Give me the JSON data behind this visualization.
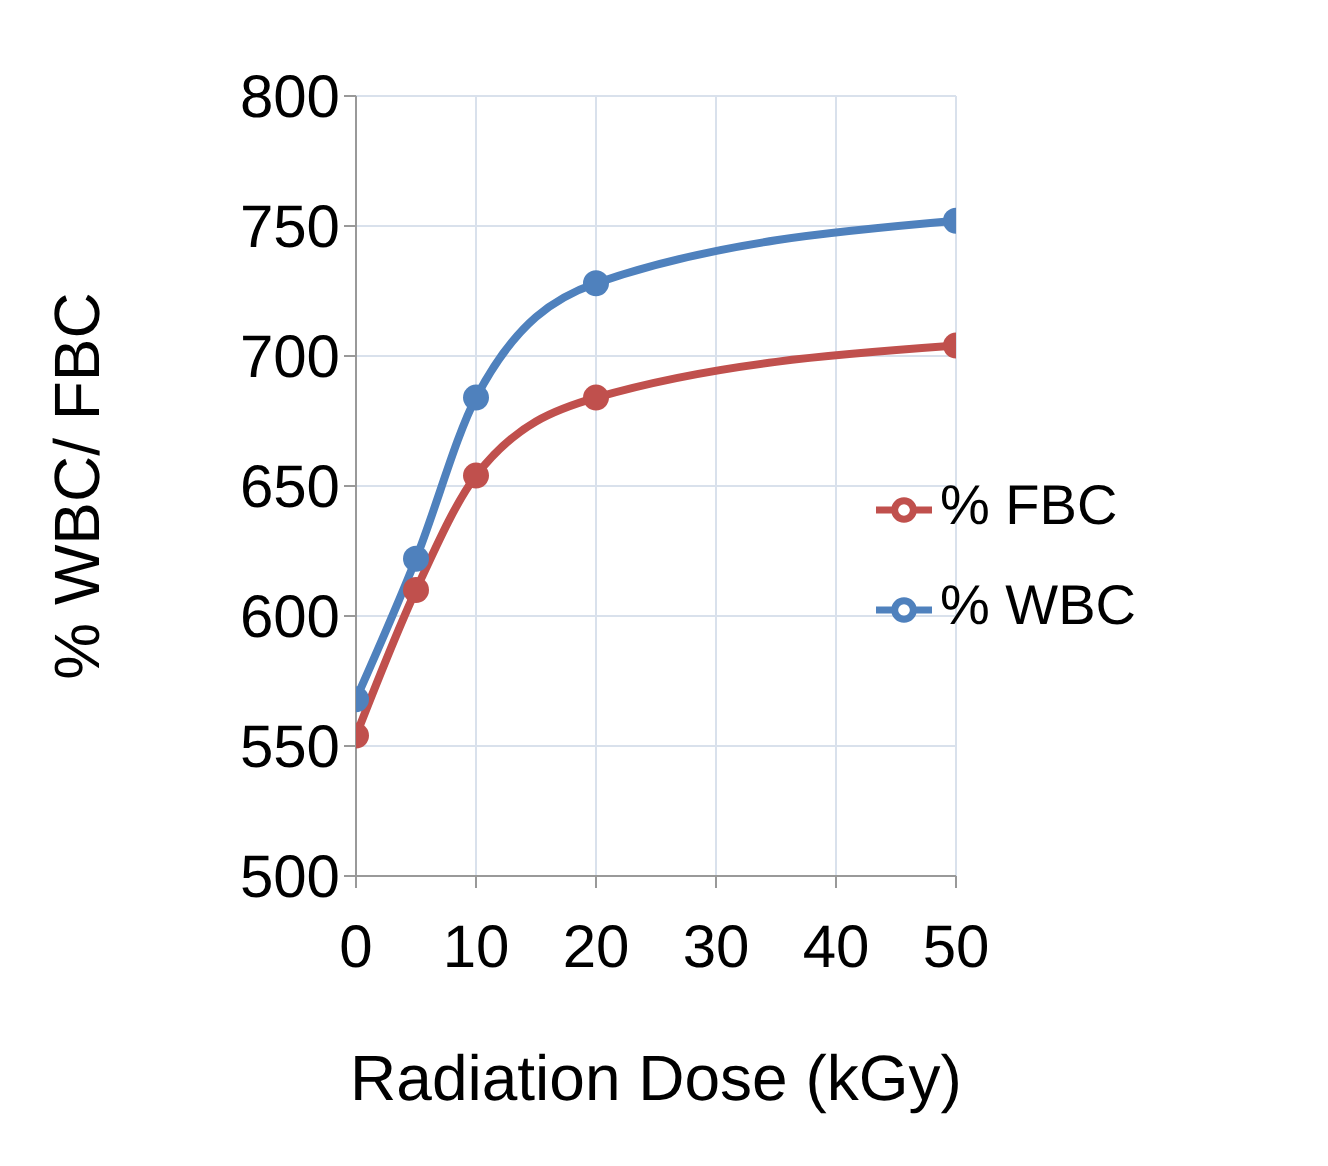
{
  "chart_data": {
    "type": "line",
    "xlabel": "Radiation Dose (kGy)",
    "ylabel": "%  WBC/ FBC",
    "x": [
      0,
      5,
      10,
      20,
      50
    ],
    "series": [
      {
        "name": "% WBC",
        "color": "#4f81bd",
        "values": [
          568,
          622,
          684,
          728,
          752
        ]
      },
      {
        "name": "% FBC",
        "color": "#c0504d",
        "values": [
          554,
          610,
          654,
          684,
          704
        ]
      }
    ],
    "xlim": [
      0,
      50
    ],
    "xticks": [
      0,
      10,
      20,
      30,
      40,
      50
    ],
    "ylim": [
      500,
      800
    ],
    "yticks": [
      500,
      550,
      600,
      650,
      700,
      750,
      800
    ],
    "grid": true,
    "legend": "right",
    "marker": "circle",
    "line_style": "solid"
  }
}
